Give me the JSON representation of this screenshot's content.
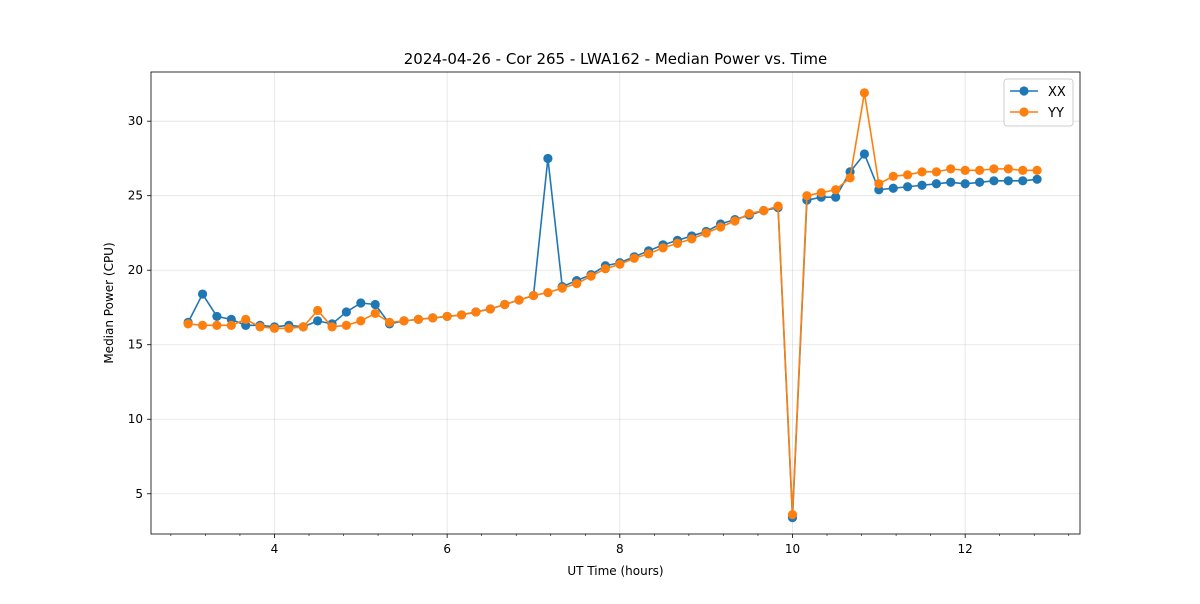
{
  "chart_data": {
    "type": "line",
    "title": "2024-04-26 - Cor 265 - LWA162 - Median Power vs. Time",
    "xlabel": "UT Time (hours)",
    "ylabel": "Median Power (CPU)",
    "xlim": [
      2.57,
      13.33
    ],
    "ylim": [
      2.3,
      33.3
    ],
    "xticks": [
      4,
      6,
      8,
      10,
      12
    ],
    "xtick_labels": [
      "4",
      "6",
      "8",
      "10",
      "12"
    ],
    "yticks": [
      5,
      10,
      15,
      20,
      25,
      30
    ],
    "ytick_labels": [
      "5",
      "10",
      "15",
      "20",
      "25",
      "30"
    ],
    "x_minor_step": 0.4,
    "grid": true,
    "legend_position": "top-right",
    "x": [
      3.0,
      3.167,
      3.333,
      3.5,
      3.667,
      3.833,
      4.0,
      4.167,
      4.333,
      4.5,
      4.667,
      4.833,
      5.0,
      5.167,
      5.333,
      5.5,
      5.667,
      5.833,
      6.0,
      6.167,
      6.333,
      6.5,
      6.667,
      6.833,
      7.0,
      7.167,
      7.333,
      7.5,
      7.667,
      7.833,
      8.0,
      8.167,
      8.333,
      8.5,
      8.667,
      8.833,
      9.0,
      9.167,
      9.333,
      9.5,
      9.667,
      9.833,
      10.0,
      10.167,
      10.333,
      10.5,
      10.667,
      10.833,
      11.0,
      11.167,
      11.333,
      11.5,
      11.667,
      11.833,
      12.0,
      12.167,
      12.333,
      12.5,
      12.667,
      12.833
    ],
    "series": [
      {
        "name": "XX",
        "color": "#1f77b4",
        "values": [
          16.5,
          18.4,
          16.9,
          16.7,
          16.3,
          16.3,
          16.2,
          16.3,
          16.2,
          16.6,
          16.4,
          17.2,
          17.8,
          17.7,
          16.4,
          16.6,
          16.7,
          16.8,
          16.9,
          17.0,
          17.2,
          17.4,
          17.7,
          18.0,
          18.3,
          27.5,
          18.9,
          19.3,
          19.7,
          20.3,
          20.5,
          20.9,
          21.3,
          21.7,
          22.0,
          22.3,
          22.6,
          23.1,
          23.4,
          23.7,
          24.0,
          24.2,
          3.4,
          24.7,
          24.9,
          24.9,
          26.6,
          27.8,
          25.4,
          25.5,
          25.6,
          25.7,
          25.8,
          25.9,
          25.8,
          25.9,
          26.0,
          26.0,
          26.0,
          26.1
        ]
      },
      {
        "name": "YY",
        "color": "#ff7f0e",
        "values": [
          16.4,
          16.3,
          16.3,
          16.3,
          16.7,
          16.2,
          16.1,
          16.1,
          16.2,
          17.3,
          16.2,
          16.3,
          16.6,
          17.1,
          16.5,
          16.6,
          16.7,
          16.8,
          16.9,
          17.0,
          17.2,
          17.4,
          17.7,
          18.0,
          18.3,
          18.5,
          18.8,
          19.1,
          19.6,
          20.1,
          20.4,
          20.8,
          21.1,
          21.5,
          21.8,
          22.1,
          22.5,
          22.9,
          23.3,
          23.8,
          24.0,
          24.3,
          3.6,
          25.0,
          25.2,
          25.4,
          26.2,
          31.9,
          25.8,
          26.3,
          26.4,
          26.6,
          26.6,
          26.8,
          26.7,
          26.7,
          26.8,
          26.8,
          26.7,
          26.7
        ]
      }
    ]
  }
}
